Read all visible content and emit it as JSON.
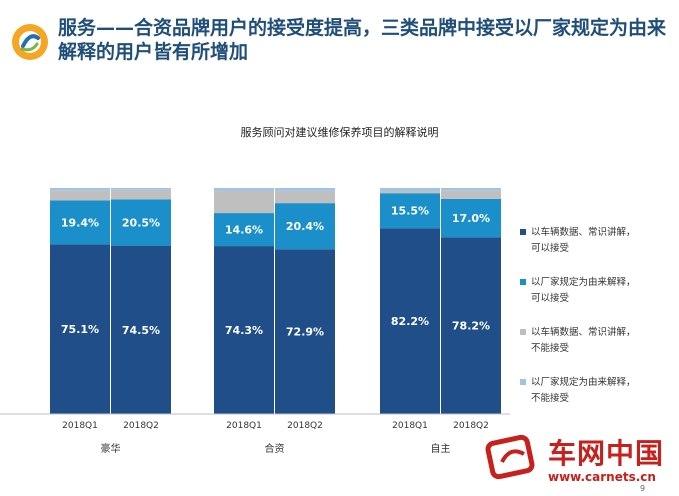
{
  "slide": {
    "title": "服务——合资品牌用户的接受度提高，三类品牌中接受以厂家规定为由来解释的用户皆有所增加",
    "page_number": "9"
  },
  "watermark": {
    "name": "车网中国",
    "url": "www.carnets.cn"
  },
  "colors": {
    "series_1": "#1f4e88",
    "series_2": "#1b8fc9",
    "series_3": "#bfbfbf",
    "series_4": "#9dc3e6",
    "title": "#1f4e79",
    "watermark": "#c8201c"
  },
  "chart_data": {
    "type": "bar",
    "stacked": true,
    "percent": true,
    "title": "服务顾问对建议维修保养项目的解释说明",
    "groups": [
      "豪华",
      "合资",
      "自主"
    ],
    "categories": [
      "2018Q1",
      "2018Q2",
      "2018Q1",
      "2018Q2",
      "2018Q1",
      "2018Q2"
    ],
    "series": [
      {
        "name": "以车辆数据、常识讲解，可以接受",
        "values": [
          75.1,
          74.5,
          74.3,
          72.9,
          82.2,
          78.2
        ]
      },
      {
        "name": "以厂家规定为由来解释，可以接受",
        "values": [
          19.4,
          20.5,
          14.6,
          20.4,
          15.5,
          17.0
        ]
      },
      {
        "name": "以车辆数据、常识讲解，不能接受",
        "values": [
          4.5,
          4.2,
          10.0,
          5.5,
          1.2,
          3.8
        ]
      },
      {
        "name": "以厂家规定为由来解释，不能接受",
        "values": [
          1.0,
          0.8,
          1.1,
          1.2,
          1.1,
          1.0
        ]
      }
    ],
    "data_labels": {
      "series_1": [
        "75.1%",
        "74.5%",
        "74.3%",
        "72.9%",
        "82.2%",
        "78.2%"
      ],
      "series_2": [
        "19.4%",
        "20.5%",
        "14.6%",
        "20.4%",
        "15.5%",
        "17.0%"
      ]
    },
    "ylim": [
      0,
      100
    ],
    "legend_position": "right",
    "grid": false
  }
}
